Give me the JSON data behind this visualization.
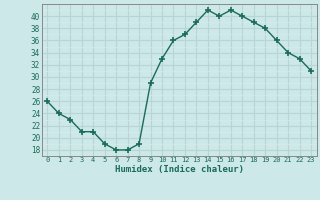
{
  "x": [
    0,
    1,
    2,
    3,
    4,
    5,
    6,
    7,
    8,
    9,
    10,
    11,
    12,
    13,
    14,
    15,
    16,
    17,
    18,
    19,
    20,
    21,
    22,
    23
  ],
  "y": [
    26,
    24,
    23,
    21,
    21,
    19,
    18,
    18,
    19,
    29,
    33,
    36,
    37,
    39,
    41,
    40,
    41,
    40,
    39,
    38,
    36,
    34,
    33,
    31
  ],
  "xlabel": "Humidex (Indice chaleur)",
  "ylim": [
    17,
    42
  ],
  "yticks": [
    18,
    20,
    22,
    24,
    26,
    28,
    30,
    32,
    34,
    36,
    38,
    40
  ],
  "xticks": [
    0,
    1,
    2,
    3,
    4,
    5,
    6,
    7,
    8,
    9,
    10,
    11,
    12,
    13,
    14,
    15,
    16,
    17,
    18,
    19,
    20,
    21,
    22,
    23
  ],
  "line_color": "#1a6b5a",
  "marker": "+",
  "bg_color": "#cce8e8",
  "grid_major_color": "#b8d4d4",
  "grid_minor_color": "#d8eaea",
  "tick_label_color": "#1a6b5a",
  "xlabel_color": "#1a6b5a",
  "border_color": "#888888"
}
